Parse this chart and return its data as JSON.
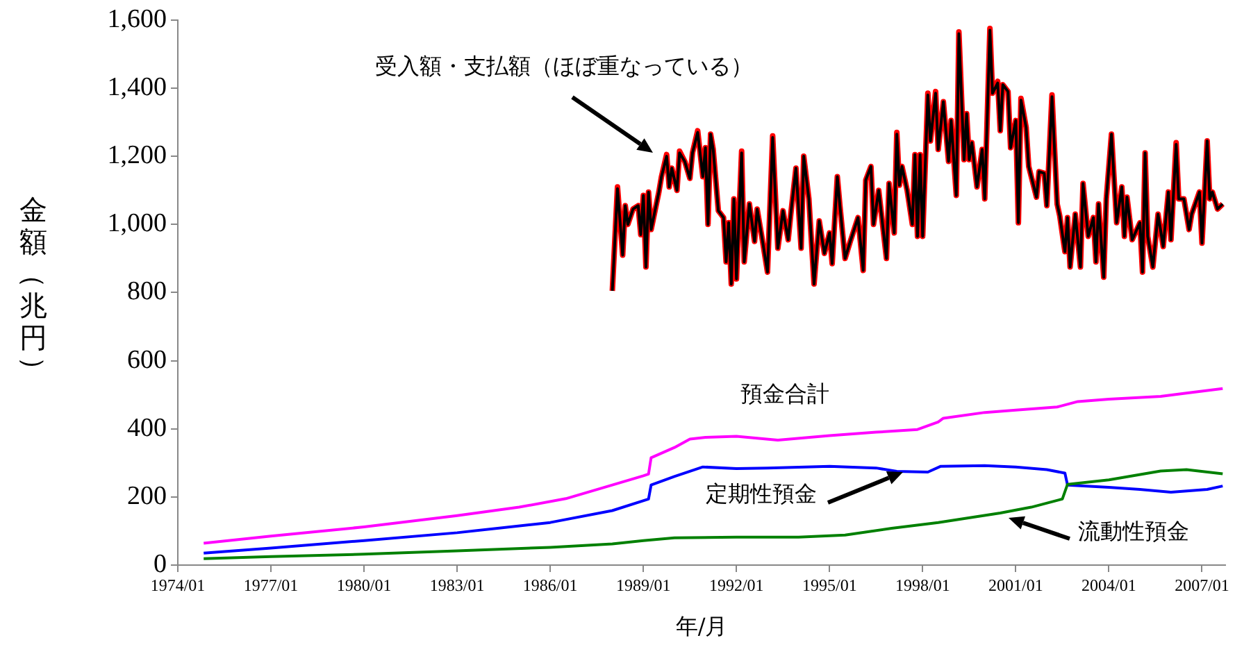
{
  "chart_data": {
    "type": "line",
    "xlabel": "年/月",
    "ylabel": "金額（兆円）",
    "marker": "none",
    "line_style": "solid",
    "annotations": [
      "受入額・支払額（ほぼ重なっている）"
    ],
    "xlim": [
      "1974-01",
      "2007-10"
    ],
    "xticks": [
      {
        "value": "1974-01",
        "label": "1974/01"
      },
      {
        "value": "1977-01",
        "label": "1977/01"
      },
      {
        "value": "1980-01",
        "label": "1980/01"
      },
      {
        "value": "1983-01",
        "label": "1983/01"
      },
      {
        "value": "1986-01",
        "label": "1986/01"
      },
      {
        "value": "1989-01",
        "label": "1989/01"
      },
      {
        "value": "1992-01",
        "label": "1992/01"
      },
      {
        "value": "1995-01",
        "label": "1995/01"
      },
      {
        "value": "1998-01",
        "label": "1998/01"
      },
      {
        "value": "2001-01",
        "label": "2001/01"
      },
      {
        "value": "2004-01",
        "label": "2004/01"
      },
      {
        "value": "2007-01",
        "label": "2007/01"
      }
    ],
    "ylim": [
      0,
      1600
    ],
    "yticks": [
      0,
      200,
      400,
      600,
      800,
      {
        "value": 1000,
        "label": "1,000"
      },
      {
        "value": 1200,
        "label": "1,200"
      },
      {
        "value": 1400,
        "label": "1,400"
      },
      {
        "value": 1600,
        "label": "1,600"
      }
    ],
    "series": [
      {
        "color": "#ff0000",
        "x": [
          "1988-01",
          "1988-03",
          "1988-05",
          "1988-06",
          "1988-07",
          "1988-09",
          "1988-11",
          "1988-12",
          "1989-01",
          "1989-02",
          "1989-03",
          "1989-04",
          "1989-07",
          "1989-08",
          "1989-10",
          "1989-11",
          "1989-12",
          "1990-02",
          "1990-03",
          "1990-05",
          "1990-07",
          "1990-08",
          "1990-10",
          "1990-12",
          "1991-01",
          "1991-02",
          "1991-03",
          "1991-04",
          "1991-06",
          "1991-08",
          "1991-09",
          "1991-10",
          "1991-11",
          "1991-12",
          "1992-01",
          "1992-03",
          "1992-04",
          "1992-06",
          "1992-08",
          "1992-09",
          "1992-11",
          "1993-01",
          "1993-03",
          "1993-05",
          "1993-07",
          "1993-09",
          "1993-10",
          "1993-12",
          "1994-02",
          "1994-03",
          "1994-05",
          "1994-07",
          "1994-09",
          "1994-11",
          "1995-01",
          "1995-02",
          "1995-04",
          "1995-05",
          "1995-07",
          "1995-09",
          "1995-12",
          "1996-02",
          "1996-03",
          "1996-05",
          "1996-06",
          "1996-08",
          "1996-11",
          "1996-12",
          "1997-02",
          "1997-03",
          "1997-04",
          "1997-05",
          "1997-07",
          "1997-09",
          "1997-10",
          "1997-11",
          "1997-12",
          "1998-01",
          "1998-03",
          "1998-04",
          "1998-06",
          "1998-07",
          "1998-09",
          "1998-11",
          "1998-12",
          "1999-02",
          "1999-03",
          "1999-05",
          "1999-06",
          "1999-07",
          "1999-08",
          "1999-10",
          "1999-12",
          "2000-01",
          "2000-03",
          "2000-04",
          "2000-06",
          "2000-07",
          "2000-08",
          "2000-10",
          "2000-11",
          "2001-01",
          "2001-02",
          "2001-03",
          "2001-05",
          "2001-06",
          "2001-09",
          "2001-10",
          "2001-12",
          "2002-01",
          "2002-03",
          "2002-05",
          "2002-06",
          "2002-08",
          "2002-09",
          "2002-10",
          "2002-12",
          "2003-02",
          "2003-03",
          "2003-05",
          "2003-07",
          "2003-08",
          "2003-09",
          "2003-11",
          "2003-12",
          "2004-02",
          "2004-04",
          "2004-06",
          "2004-07",
          "2004-08",
          "2004-10",
          "2005-01",
          "2005-02",
          "2005-03",
          "2005-04",
          "2005-06",
          "2005-08",
          "2005-10",
          "2005-12",
          "2006-01",
          "2006-03",
          "2006-04",
          "2006-06",
          "2006-08",
          "2006-09",
          "2006-12",
          "2007-01",
          "2007-03",
          "2007-04",
          "2007-05",
          "2007-07",
          "2007-09"
        ],
        "values": [
          805,
          1110,
          910,
          1055,
          1000,
          1045,
          1055,
          970,
          1085,
          875,
          1095,
          985,
          1095,
          1140,
          1205,
          1110,
          1165,
          1100,
          1215,
          1185,
          1135,
          1210,
          1275,
          1140,
          1225,
          1000,
          1265,
          1220,
          1040,
          1020,
          890,
          1005,
          825,
          1075,
          840,
          1215,
          890,
          1060,
          950,
          1045,
          955,
          860,
          1260,
          930,
          1040,
          955,
          1030,
          1165,
          930,
          1200,
          1075,
          825,
          1010,
          915,
          975,
          885,
          1140,
          1055,
          900,
          950,
          1020,
          865,
          1130,
          1170,
          1000,
          1100,
          900,
          1120,
          975,
          1270,
          1115,
          1170,
          1100,
          1000,
          1205,
          965,
          1205,
          965,
          1385,
          1245,
          1390,
          1220,
          1360,
          1185,
          1305,
          1085,
          1565,
          1190,
          1325,
          1190,
          1240,
          1110,
          1220,
          1075,
          1575,
          1385,
          1420,
          1275,
          1410,
          1390,
          1225,
          1305,
          1005,
          1370,
          1285,
          1170,
          1080,
          1155,
          1150,
          1055,
          1380,
          1060,
          1025,
          920,
          1020,
          875,
          1030,
          875,
          1120,
          965,
          1020,
          890,
          1060,
          845,
          1075,
          1265,
          1005,
          1110,
          965,
          1080,
          955,
          1005,
          860,
          1210,
          965,
          875,
          1030,
          935,
          1095,
          955,
          1240,
          1075,
          1075,
          985,
          1030,
          1095,
          945,
          1245,
          1075,
          1095,
          1045,
          1060
        ]
      },
      {
        "color": "#000000",
        "x": [
          "1988-01",
          "1988-03",
          "1988-05",
          "1988-06",
          "1988-07",
          "1988-09",
          "1988-11",
          "1988-12",
          "1989-01",
          "1989-02",
          "1989-03",
          "1989-04",
          "1989-07",
          "1989-08",
          "1989-10",
          "1989-11",
          "1989-12",
          "1990-02",
          "1990-03",
          "1990-05",
          "1990-07",
          "1990-08",
          "1990-10",
          "1990-12",
          "1991-01",
          "1991-02",
          "1991-03",
          "1991-04",
          "1991-06",
          "1991-08",
          "1991-09",
          "1991-10",
          "1991-11",
          "1991-12",
          "1992-01",
          "1992-03",
          "1992-04",
          "1992-06",
          "1992-08",
          "1992-09",
          "1992-11",
          "1993-01",
          "1993-03",
          "1993-05",
          "1993-07",
          "1993-09",
          "1993-10",
          "1993-12",
          "1994-02",
          "1994-03",
          "1994-05",
          "1994-07",
          "1994-09",
          "1994-11",
          "1995-01",
          "1995-02",
          "1995-04",
          "1995-05",
          "1995-07",
          "1995-09",
          "1995-12",
          "1996-02",
          "1996-03",
          "1996-05",
          "1996-06",
          "1996-08",
          "1996-11",
          "1996-12",
          "1997-02",
          "1997-03",
          "1997-04",
          "1997-05",
          "1997-07",
          "1997-09",
          "1997-10",
          "1997-11",
          "1997-12",
          "1998-01",
          "1998-03",
          "1998-04",
          "1998-06",
          "1998-07",
          "1998-09",
          "1998-11",
          "1998-12",
          "1999-02",
          "1999-03",
          "1999-05",
          "1999-06",
          "1999-07",
          "1999-08",
          "1999-10",
          "1999-12",
          "2000-01",
          "2000-03",
          "2000-04",
          "2000-06",
          "2000-07",
          "2000-08",
          "2000-10",
          "2000-11",
          "2001-01",
          "2001-02",
          "2001-03",
          "2001-05",
          "2001-06",
          "2001-09",
          "2001-10",
          "2001-12",
          "2002-01",
          "2002-03",
          "2002-05",
          "2002-06",
          "2002-08",
          "2002-09",
          "2002-10",
          "2002-12",
          "2003-02",
          "2003-03",
          "2003-05",
          "2003-07",
          "2003-08",
          "2003-09",
          "2003-11",
          "2003-12",
          "2004-02",
          "2004-04",
          "2004-06",
          "2004-07",
          "2004-08",
          "2004-10",
          "2005-01",
          "2005-02",
          "2005-03",
          "2005-04",
          "2005-06",
          "2005-08",
          "2005-10",
          "2005-12",
          "2006-01",
          "2006-03",
          "2006-04",
          "2006-06",
          "2006-08",
          "2006-09",
          "2006-12",
          "2007-01",
          "2007-03",
          "2007-04",
          "2007-05",
          "2007-07",
          "2007-09"
        ],
        "values": [
          805,
          1105,
          910,
          1055,
          1000,
          1045,
          1055,
          970,
          1085,
          875,
          1095,
          985,
          1095,
          1140,
          1200,
          1110,
          1165,
          1100,
          1210,
          1185,
          1135,
          1210,
          1270,
          1140,
          1225,
          1000,
          1265,
          1220,
          1040,
          1020,
          890,
          1005,
          825,
          1075,
          840,
          1210,
          890,
          1060,
          950,
          1045,
          955,
          860,
          1255,
          930,
          1040,
          955,
          1030,
          1165,
          930,
          1200,
          1075,
          825,
          1010,
          915,
          975,
          885,
          1140,
          1055,
          900,
          950,
          1020,
          865,
          1130,
          1170,
          1000,
          1100,
          900,
          1120,
          975,
          1265,
          1115,
          1170,
          1100,
          1000,
          1205,
          965,
          1205,
          965,
          1380,
          1245,
          1385,
          1220,
          1360,
          1185,
          1305,
          1085,
          1560,
          1190,
          1325,
          1190,
          1240,
          1110,
          1220,
          1075,
          1570,
          1385,
          1415,
          1275,
          1410,
          1390,
          1225,
          1305,
          1005,
          1365,
          1285,
          1170,
          1080,
          1155,
          1150,
          1055,
          1375,
          1060,
          1025,
          920,
          1020,
          875,
          1030,
          875,
          1120,
          965,
          1020,
          890,
          1060,
          845,
          1075,
          1265,
          1005,
          1110,
          965,
          1080,
          955,
          1005,
          860,
          1210,
          965,
          875,
          1030,
          935,
          1095,
          955,
          1235,
          1075,
          1075,
          985,
          1030,
          1095,
          945,
          1245,
          1075,
          1095,
          1045,
          1060
        ]
      },
      {
        "name": "預金合計",
        "color": "#ff00ff",
        "x": [
          "1974-11",
          "1977-01",
          "1980-01",
          "1983-01",
          "1985-01",
          "1986-07",
          "1988-01",
          "1989-01",
          "1989-03",
          "1989-04",
          "1990-01",
          "1990-07",
          "1991-01",
          "1992-01",
          "1993-05",
          "1995-01",
          "1996-07",
          "1997-11",
          "1998-07",
          "1998-09",
          "2000-01",
          "2001-01",
          "2002-05",
          "2003-01",
          "2004-01",
          "2005-09",
          "2006-07",
          "2007-09"
        ],
        "values": [
          64,
          85,
          112,
          145,
          170,
          195,
          235,
          262,
          267,
          315,
          345,
          370,
          375,
          378,
          367,
          380,
          390,
          398,
          420,
          431,
          448,
          455,
          464,
          480,
          487,
          495,
          505,
          518
        ]
      },
      {
        "name": "定期性預金",
        "color": "#0000ff",
        "x": [
          "1974-11",
          "1977-01",
          "1980-01",
          "1983-01",
          "1986-01",
          "1988-01",
          "1989-03",
          "1989-04",
          "1990-01",
          "1990-12",
          "1992-01",
          "1993-01",
          "1995-01",
          "1996-07",
          "1997-03",
          "1998-03",
          "1998-08",
          "2000-01",
          "2001-01",
          "2002-01",
          "2002-08",
          "2002-09",
          "2004-01",
          "2005-01",
          "2006-01",
          "2007-03",
          "2007-09"
        ],
        "values": [
          35,
          50,
          72,
          95,
          125,
          160,
          194,
          235,
          260,
          288,
          283,
          285,
          290,
          285,
          275,
          273,
          290,
          292,
          288,
          280,
          270,
          235,
          228,
          222,
          214,
          222,
          232
        ]
      },
      {
        "name": "流動性預金",
        "color": "#008000",
        "x": [
          "1974-11",
          "1977-01",
          "1980-01",
          "1983-01",
          "1986-01",
          "1988-01",
          "1989-01",
          "1990-01",
          "1992-01",
          "1994-01",
          "1995-07",
          "1997-01",
          "1998-07",
          "2000-07",
          "2001-07",
          "2002-07",
          "2002-09",
          "2004-01",
          "2005-09",
          "2006-07",
          "2007-09"
        ],
        "values": [
          19,
          25,
          32,
          42,
          52,
          62,
          72,
          80,
          82,
          82,
          88,
          108,
          125,
          153,
          170,
          194,
          237,
          250,
          276,
          280,
          268
        ]
      }
    ]
  }
}
